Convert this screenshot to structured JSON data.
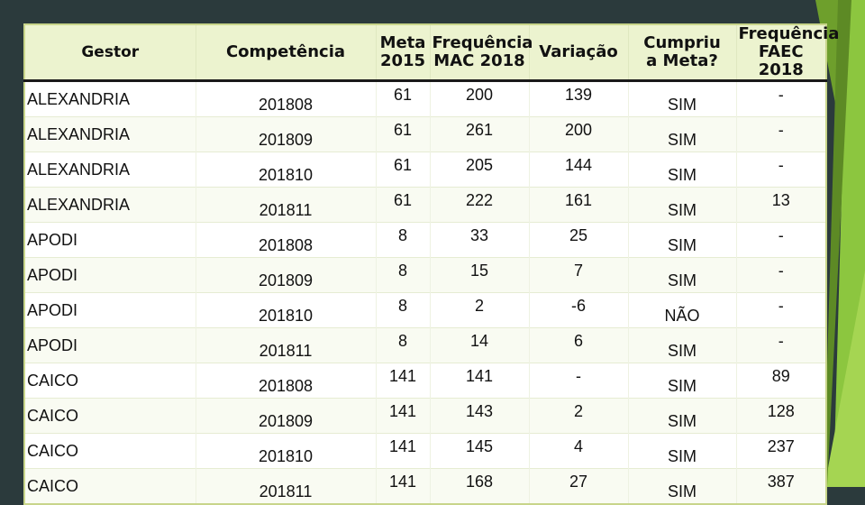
{
  "table": {
    "headers": {
      "gestor": "Gestor",
      "competencia": "Competência",
      "meta_line1": "Meta",
      "meta_line2": "2015",
      "freq_mac_line1": "Frequência",
      "freq_mac_line2": "MAC 2018",
      "variacao": "Variação",
      "cumpriu_line1": "Cumpriu",
      "cumpriu_line2": "a Meta?",
      "faec_line1": "Frequência",
      "faec_line2": "FAEC 2018"
    },
    "rows": [
      {
        "gestor": "ALEXANDRIA",
        "competencia": "201808",
        "meta": "61",
        "freq_mac": "200",
        "variacao": "139",
        "cumpriu": "SIM",
        "faec": "-"
      },
      {
        "gestor": "ALEXANDRIA",
        "competencia": "201809",
        "meta": "61",
        "freq_mac": "261",
        "variacao": "200",
        "cumpriu": "SIM",
        "faec": "-"
      },
      {
        "gestor": "ALEXANDRIA",
        "competencia": "201810",
        "meta": "61",
        "freq_mac": "205",
        "variacao": "144",
        "cumpriu": "SIM",
        "faec": "-"
      },
      {
        "gestor": "ALEXANDRIA",
        "competencia": "201811",
        "meta": "61",
        "freq_mac": "222",
        "variacao": "161",
        "cumpriu": "SIM",
        "faec": "13"
      },
      {
        "gestor": "APODI",
        "competencia": "201808",
        "meta": "8",
        "freq_mac": "33",
        "variacao": "25",
        "cumpriu": "SIM",
        "faec": "-"
      },
      {
        "gestor": "APODI",
        "competencia": "201809",
        "meta": "8",
        "freq_mac": "15",
        "variacao": "7",
        "cumpriu": "SIM",
        "faec": "-"
      },
      {
        "gestor": "APODI",
        "competencia": "201810",
        "meta": "8",
        "freq_mac": "2",
        "variacao": "-6",
        "cumpriu": "NÃO",
        "faec": "-"
      },
      {
        "gestor": "APODI",
        "competencia": "201811",
        "meta": "8",
        "freq_mac": "14",
        "variacao": "6",
        "cumpriu": "SIM",
        "faec": "-"
      },
      {
        "gestor": "CAICO",
        "competencia": "201808",
        "meta": "141",
        "freq_mac": "141",
        "variacao": "-",
        "cumpriu": "SIM",
        "faec": "89"
      },
      {
        "gestor": "CAICO",
        "competencia": "201809",
        "meta": "141",
        "freq_mac": "143",
        "variacao": "2",
        "cumpriu": "SIM",
        "faec": "128"
      },
      {
        "gestor": "CAICO",
        "competencia": "201810",
        "meta": "141",
        "freq_mac": "145",
        "variacao": "4",
        "cumpriu": "SIM",
        "faec": "237"
      },
      {
        "gestor": "CAICO",
        "competencia": "201811",
        "meta": "141",
        "freq_mac": "168",
        "variacao": "27",
        "cumpriu": "SIM",
        "faec": "387"
      }
    ]
  },
  "colors": {
    "background": "#2b3a3c",
    "accent_green": "#8cc63f",
    "header_fill": "#ecf3cf",
    "no_text": "#e8261b"
  }
}
